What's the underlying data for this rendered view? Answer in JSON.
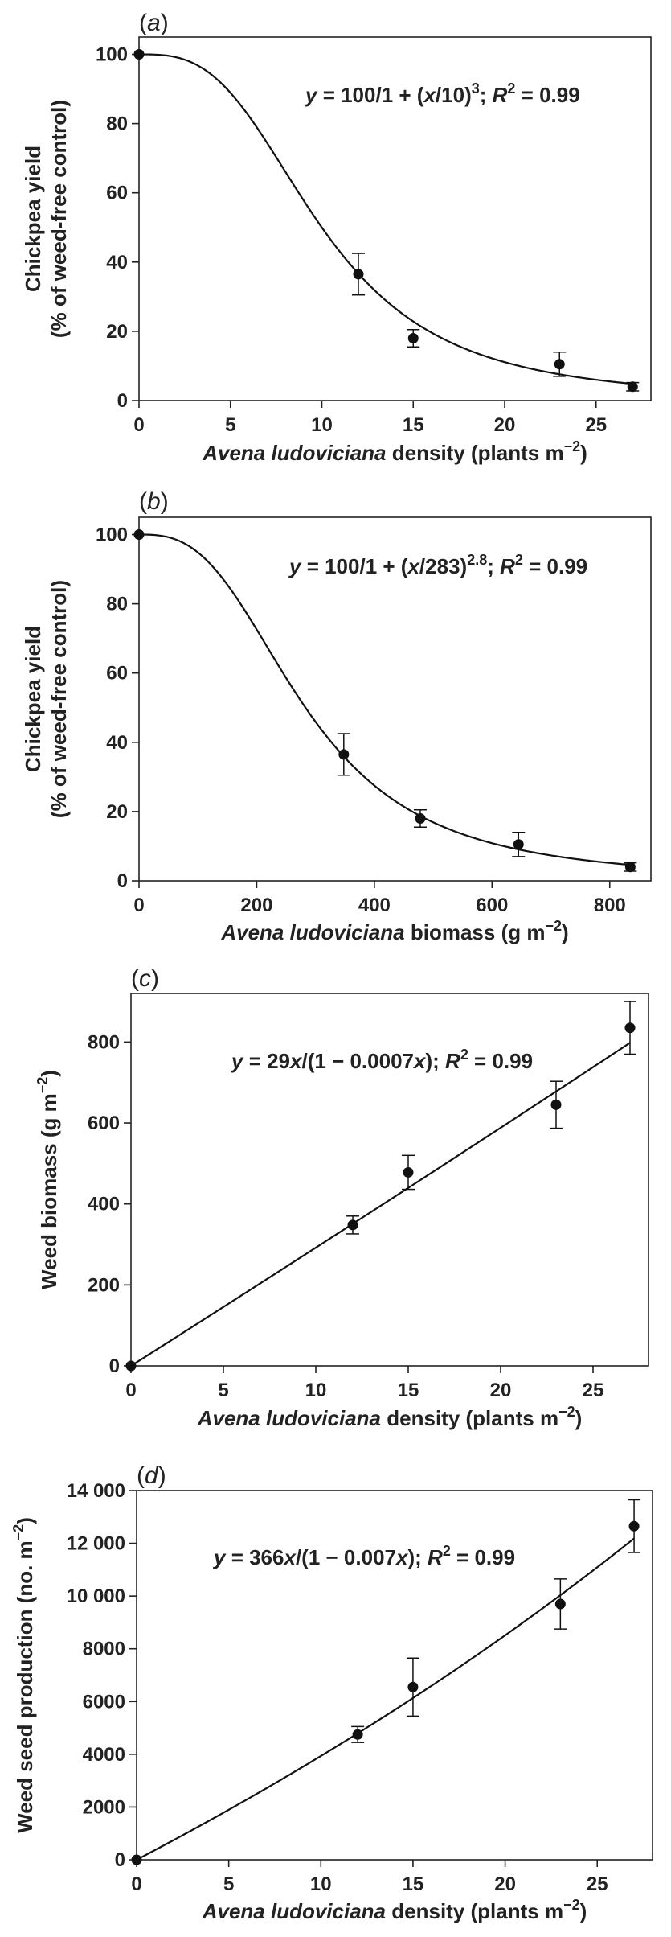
{
  "chart_data": [
    {
      "panel": "a",
      "type": "scatter",
      "equation": {
        "pre": "y",
        "mid": " = 100/1 + (",
        "x": "x",
        "post": "/10)",
        "exp": "3",
        "sep": "; ",
        "r": "R",
        "r_exp": "2",
        "val": " = 0.99"
      },
      "xlabel": {
        "italic": "Avena ludoviciana",
        "rest": " density (plants m",
        "exp": "−2",
        "close": ")"
      },
      "ylabel": [
        "Chickpea yield",
        "(% of weed-free control)"
      ],
      "xlim": [
        0,
        28
      ],
      "ylim": [
        0,
        105
      ],
      "xticks": [
        0,
        5,
        10,
        15,
        20,
        25
      ],
      "yticks": [
        0,
        20,
        40,
        60,
        80,
        100
      ],
      "points": [
        {
          "x": 0,
          "y": 100,
          "err": 0
        },
        {
          "x": 12,
          "y": 36.5,
          "err": 6
        },
        {
          "x": 15,
          "y": 18,
          "err": 2.5
        },
        {
          "x": 23,
          "y": 10.5,
          "err": 3.5
        },
        {
          "x": 27,
          "y": 4,
          "err": 1.2
        }
      ],
      "model": {
        "kind": "loglogistic",
        "c": 10,
        "b": 3
      }
    },
    {
      "panel": "b",
      "type": "scatter",
      "equation": {
        "pre": "y",
        "mid": " = 100/1 + (",
        "x": "x",
        "post": "/283)",
        "exp": "2.8",
        "sep": "; ",
        "r": "R",
        "r_exp": "2",
        "val": " = 0.99"
      },
      "xlabel": {
        "italic": "Avena ludoviciana",
        "rest": " biomass (g m",
        "exp": "−2",
        "close": ")"
      },
      "ylabel": [
        "Chickpea yield",
        "(% of weed-free control)"
      ],
      "xlim": [
        0,
        870
      ],
      "ylim": [
        0,
        105
      ],
      "xticks": [
        0,
        200,
        400,
        600,
        800
      ],
      "yticks": [
        0,
        20,
        40,
        60,
        80,
        100
      ],
      "points": [
        {
          "x": 0,
          "y": 100,
          "err": 0
        },
        {
          "x": 348,
          "y": 36.5,
          "err": 6
        },
        {
          "x": 478,
          "y": 18,
          "err": 2.5
        },
        {
          "x": 645,
          "y": 10.5,
          "err": 3.5
        },
        {
          "x": 835,
          "y": 4,
          "err": 1.2
        }
      ],
      "model": {
        "kind": "loglogistic",
        "c": 283,
        "b": 2.8
      }
    },
    {
      "panel": "c",
      "type": "scatter",
      "equation": {
        "pre": "y",
        "mid": " = 29",
        "x": "x",
        "post": "/(1 − 0.0007",
        "x2": "x",
        "post2": ")",
        "sep": "; ",
        "r": "R",
        "r_exp": "2",
        "val": " = 0.99"
      },
      "xlabel": {
        "italic": "Avena ludoviciana",
        "rest": " density (plants m",
        "exp": "−2",
        "close": ")"
      },
      "ylabel": [
        "Weed biomass (g m",
        "−2",
        ")"
      ],
      "xlim": [
        0,
        28
      ],
      "ylim": [
        0,
        920
      ],
      "xticks": [
        0,
        5,
        10,
        15,
        20,
        25
      ],
      "yticks": [
        0,
        200,
        400,
        600,
        800
      ],
      "points": [
        {
          "x": 0,
          "y": 0,
          "err": 0
        },
        {
          "x": 12,
          "y": 348,
          "err": 22
        },
        {
          "x": 15,
          "y": 478,
          "err": 42
        },
        {
          "x": 23,
          "y": 645,
          "err": 58
        },
        {
          "x": 27,
          "y": 835,
          "err": 65
        }
      ],
      "model": {
        "kind": "hyperbolic",
        "a": 29,
        "k": 0.0007
      }
    },
    {
      "panel": "d",
      "type": "scatter",
      "equation": {
        "pre": "y",
        "mid": " = 366",
        "x": "x",
        "post": "/(1 − 0.007",
        "x2": "x",
        "post2": ")",
        "sep": "; ",
        "r": "R",
        "r_exp": "2",
        "val": " = 0.99"
      },
      "xlabel": {
        "italic": "Avena ludoviciana",
        "rest": " density (plants m",
        "exp": "−2",
        "close": ")"
      },
      "ylabel": [
        "Weed seed production (no. m",
        "−2",
        ")"
      ],
      "xlim": [
        0,
        28
      ],
      "ylim": [
        0,
        14000
      ],
      "xticks": [
        0,
        5,
        10,
        15,
        20,
        25
      ],
      "yticks": [
        0,
        2000,
        4000,
        6000,
        8000,
        10000,
        12000,
        14000
      ],
      "ytick_labels": [
        "0",
        "2000",
        "4000",
        "6000",
        "8000",
        "10 000",
        "12 000",
        "14 000"
      ],
      "points": [
        {
          "x": 0,
          "y": 0,
          "err": 0
        },
        {
          "x": 12,
          "y": 4750,
          "err": 300
        },
        {
          "x": 15,
          "y": 6550,
          "err": 1100
        },
        {
          "x": 23,
          "y": 9700,
          "err": 950
        },
        {
          "x": 27,
          "y": 12650,
          "err": 1000
        }
      ],
      "model": {
        "kind": "hyperbolic",
        "a": 366,
        "k": 0.007
      }
    }
  ]
}
